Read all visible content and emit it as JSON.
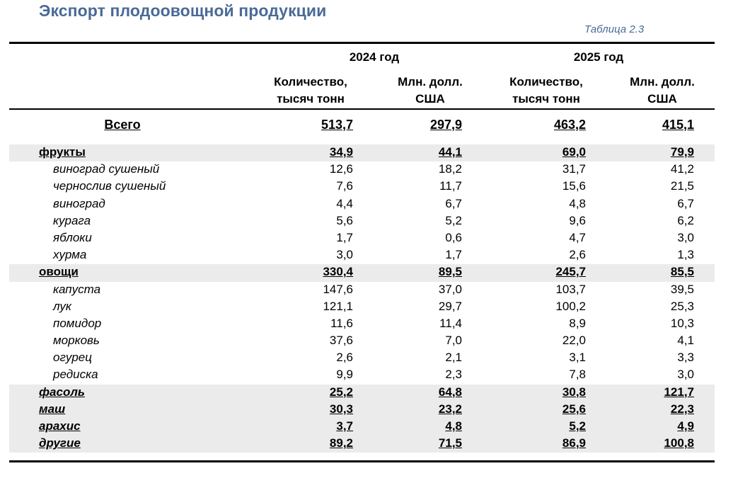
{
  "title": "Экспорт плодоовощной продукции",
  "table_label": "Таблица 2.3",
  "years": [
    "2024 год",
    "2025 год"
  ],
  "subheaders": {
    "qty_line1": "Количество,",
    "qty_line2": "тысяч тонн",
    "val_line1": "Млн. долл.",
    "val_line2": "США"
  },
  "total": {
    "label": "Всего",
    "values": [
      "513,7",
      "297,9",
      "463,2",
      "415,1"
    ]
  },
  "rows": [
    {
      "type": "group",
      "label": "фрукты",
      "values": [
        "34,9",
        "44,1",
        "69,0",
        "79,9"
      ]
    },
    {
      "type": "item",
      "label": "виноград сушеный",
      "values": [
        "12,6",
        "18,2",
        "31,7",
        "41,2"
      ]
    },
    {
      "type": "item",
      "label": "чернослив сушеный",
      "values": [
        "7,6",
        "11,7",
        "15,6",
        "21,5"
      ]
    },
    {
      "type": "item",
      "label": "виноград",
      "values": [
        "4,4",
        "6,7",
        "4,8",
        "6,7"
      ]
    },
    {
      "type": "item",
      "label": "курага",
      "values": [
        "5,6",
        "5,2",
        "9,6",
        "6,2"
      ]
    },
    {
      "type": "item",
      "label": "яблоки",
      "values": [
        "1,7",
        "0,6",
        "4,7",
        "3,0"
      ]
    },
    {
      "type": "item",
      "label": "хурма",
      "values": [
        "3,0",
        "1,7",
        "2,6",
        "1,3"
      ]
    },
    {
      "type": "group",
      "label": "овощи",
      "values": [
        "330,4",
        "89,5",
        "245,7",
        "85,5"
      ]
    },
    {
      "type": "item",
      "label": "капуста",
      "values": [
        "147,6",
        "37,0",
        "103,7",
        "39,5"
      ]
    },
    {
      "type": "item",
      "label": "лук",
      "values": [
        "121,1",
        "29,7",
        "100,2",
        "25,3"
      ]
    },
    {
      "type": "item",
      "label": "помидор",
      "values": [
        "11,6",
        "11,4",
        "8,9",
        "10,3"
      ]
    },
    {
      "type": "item",
      "label": "морковь",
      "values": [
        "37,6",
        "7,0",
        "22,0",
        "4,1"
      ]
    },
    {
      "type": "item",
      "label": "огурец",
      "values": [
        "2,6",
        "2,1",
        "3,1",
        "3,3"
      ]
    },
    {
      "type": "item",
      "label": "редиска",
      "values": [
        "9,9",
        "2,3",
        "7,8",
        "3,0"
      ]
    },
    {
      "type": "group-it",
      "label": "фасоль",
      "values": [
        "25,2",
        "64,8",
        "30,8",
        "121,7"
      ]
    },
    {
      "type": "group-it",
      "label": "маш",
      "values": [
        "30,3",
        "23,2",
        "25,6",
        "22,3"
      ]
    },
    {
      "type": "group-it",
      "label": "арахис",
      "values": [
        "3,7",
        "4,8",
        "5,2",
        "4,9"
      ]
    },
    {
      "type": "group-it",
      "label": "другие",
      "values": [
        "89,2",
        "71,5",
        "86,9",
        "100,8"
      ]
    }
  ]
}
